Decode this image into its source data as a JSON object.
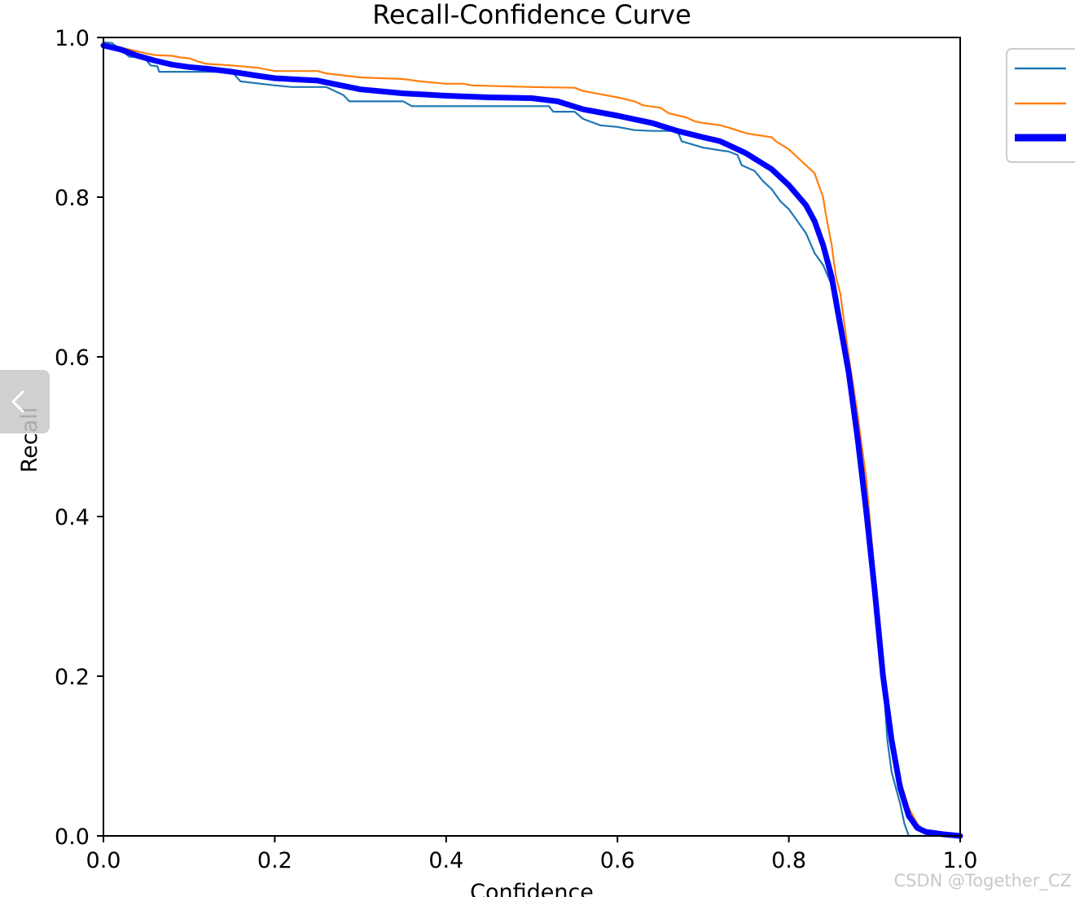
{
  "chart_data": {
    "type": "line",
    "title": "Recall-Confidence Curve",
    "xlabel": "Confidence",
    "ylabel": "Recall",
    "xlim": [
      0,
      1
    ],
    "ylim": [
      0,
      1
    ],
    "xticks": [
      "0.0",
      "0.2",
      "0.4",
      "0.6",
      "0.8",
      "1.0"
    ],
    "yticks": [
      "0.0",
      "0.2",
      "0.4",
      "0.6",
      "0.8",
      "1.0"
    ],
    "grid": false,
    "legend_position": "upper-right-outside",
    "series": [
      {
        "color": "#1f77b4",
        "width": "thin",
        "points": [
          [
            0.0,
            0.994
          ],
          [
            0.01,
            0.993
          ],
          [
            0.02,
            0.985
          ],
          [
            0.03,
            0.976
          ],
          [
            0.04,
            0.975
          ],
          [
            0.05,
            0.972
          ],
          [
            0.055,
            0.965
          ],
          [
            0.063,
            0.964
          ],
          [
            0.065,
            0.957
          ],
          [
            0.1,
            0.957
          ],
          [
            0.15,
            0.957
          ],
          [
            0.16,
            0.945
          ],
          [
            0.2,
            0.94
          ],
          [
            0.22,
            0.938
          ],
          [
            0.26,
            0.938
          ],
          [
            0.28,
            0.928
          ],
          [
            0.287,
            0.92
          ],
          [
            0.3,
            0.92
          ],
          [
            0.35,
            0.92
          ],
          [
            0.36,
            0.914
          ],
          [
            0.4,
            0.914
          ],
          [
            0.5,
            0.914
          ],
          [
            0.52,
            0.914
          ],
          [
            0.525,
            0.907
          ],
          [
            0.55,
            0.907
          ],
          [
            0.56,
            0.898
          ],
          [
            0.58,
            0.89
          ],
          [
            0.6,
            0.888
          ],
          [
            0.62,
            0.884
          ],
          [
            0.64,
            0.883
          ],
          [
            0.67,
            0.883
          ],
          [
            0.675,
            0.87
          ],
          [
            0.7,
            0.862
          ],
          [
            0.73,
            0.857
          ],
          [
            0.74,
            0.853
          ],
          [
            0.745,
            0.84
          ],
          [
            0.76,
            0.833
          ],
          [
            0.77,
            0.82
          ],
          [
            0.78,
            0.81
          ],
          [
            0.79,
            0.795
          ],
          [
            0.8,
            0.785
          ],
          [
            0.81,
            0.77
          ],
          [
            0.82,
            0.755
          ],
          [
            0.83,
            0.73
          ],
          [
            0.84,
            0.715
          ],
          [
            0.85,
            0.69
          ],
          [
            0.855,
            0.67
          ],
          [
            0.86,
            0.64
          ],
          [
            0.87,
            0.6
          ],
          [
            0.88,
            0.52
          ],
          [
            0.89,
            0.45
          ],
          [
            0.9,
            0.33
          ],
          [
            0.91,
            0.2
          ],
          [
            0.915,
            0.12
          ],
          [
            0.92,
            0.08
          ],
          [
            0.93,
            0.04
          ],
          [
            0.935,
            0.015
          ],
          [
            0.94,
            0.0
          ],
          [
            0.95,
            0.0
          ],
          [
            1.0,
            0.0
          ]
        ]
      },
      {
        "color": "#ff7f0e",
        "width": "thin",
        "points": [
          [
            0.0,
            0.993
          ],
          [
            0.01,
            0.99
          ],
          [
            0.03,
            0.985
          ],
          [
            0.05,
            0.98
          ],
          [
            0.06,
            0.978
          ],
          [
            0.08,
            0.977
          ],
          [
            0.09,
            0.975
          ],
          [
            0.1,
            0.974
          ],
          [
            0.11,
            0.97
          ],
          [
            0.12,
            0.967
          ],
          [
            0.15,
            0.965
          ],
          [
            0.18,
            0.962
          ],
          [
            0.2,
            0.958
          ],
          [
            0.25,
            0.958
          ],
          [
            0.26,
            0.955
          ],
          [
            0.3,
            0.95
          ],
          [
            0.35,
            0.948
          ],
          [
            0.37,
            0.945
          ],
          [
            0.4,
            0.942
          ],
          [
            0.42,
            0.942
          ],
          [
            0.43,
            0.94
          ],
          [
            0.5,
            0.938
          ],
          [
            0.55,
            0.937
          ],
          [
            0.56,
            0.933
          ],
          [
            0.6,
            0.925
          ],
          [
            0.62,
            0.92
          ],
          [
            0.63,
            0.915
          ],
          [
            0.65,
            0.912
          ],
          [
            0.66,
            0.905
          ],
          [
            0.68,
            0.9
          ],
          [
            0.69,
            0.895
          ],
          [
            0.7,
            0.893
          ],
          [
            0.72,
            0.89
          ],
          [
            0.73,
            0.887
          ],
          [
            0.75,
            0.88
          ],
          [
            0.78,
            0.875
          ],
          [
            0.785,
            0.87
          ],
          [
            0.8,
            0.86
          ],
          [
            0.81,
            0.85
          ],
          [
            0.82,
            0.84
          ],
          [
            0.83,
            0.83
          ],
          [
            0.835,
            0.815
          ],
          [
            0.84,
            0.8
          ],
          [
            0.843,
            0.78
          ],
          [
            0.85,
            0.74
          ],
          [
            0.855,
            0.7
          ],
          [
            0.86,
            0.68
          ],
          [
            0.87,
            0.6
          ],
          [
            0.88,
            0.53
          ],
          [
            0.89,
            0.45
          ],
          [
            0.9,
            0.33
          ],
          [
            0.91,
            0.2
          ],
          [
            0.92,
            0.12
          ],
          [
            0.93,
            0.07
          ],
          [
            0.94,
            0.035
          ],
          [
            0.95,
            0.015
          ],
          [
            0.96,
            0.005
          ],
          [
            0.97,
            0.002
          ],
          [
            1.0,
            0.0
          ]
        ]
      },
      {
        "color": "#0000ff",
        "width": "thick",
        "points": [
          [
            0.0,
            0.99
          ],
          [
            0.02,
            0.985
          ],
          [
            0.04,
            0.977
          ],
          [
            0.06,
            0.971
          ],
          [
            0.08,
            0.966
          ],
          [
            0.1,
            0.963
          ],
          [
            0.12,
            0.961
          ],
          [
            0.15,
            0.957
          ],
          [
            0.18,
            0.952
          ],
          [
            0.2,
            0.949
          ],
          [
            0.25,
            0.946
          ],
          [
            0.3,
            0.935
          ],
          [
            0.35,
            0.93
          ],
          [
            0.4,
            0.927
          ],
          [
            0.45,
            0.925
          ],
          [
            0.5,
            0.924
          ],
          [
            0.53,
            0.92
          ],
          [
            0.56,
            0.91
          ],
          [
            0.6,
            0.902
          ],
          [
            0.64,
            0.893
          ],
          [
            0.67,
            0.883
          ],
          [
            0.7,
            0.875
          ],
          [
            0.72,
            0.87
          ],
          [
            0.75,
            0.855
          ],
          [
            0.78,
            0.835
          ],
          [
            0.8,
            0.815
          ],
          [
            0.82,
            0.79
          ],
          [
            0.83,
            0.77
          ],
          [
            0.84,
            0.74
          ],
          [
            0.85,
            0.7
          ],
          [
            0.86,
            0.64
          ],
          [
            0.87,
            0.58
          ],
          [
            0.88,
            0.5
          ],
          [
            0.89,
            0.41
          ],
          [
            0.9,
            0.31
          ],
          [
            0.91,
            0.2
          ],
          [
            0.92,
            0.12
          ],
          [
            0.93,
            0.06
          ],
          [
            0.94,
            0.025
          ],
          [
            0.95,
            0.01
          ],
          [
            0.96,
            0.005
          ],
          [
            0.98,
            0.002
          ],
          [
            1.0,
            0.0
          ]
        ]
      }
    ]
  },
  "watermark": "CSDN @Together_CZ",
  "colors": {
    "axis": "#000000",
    "legend_border": "#cccccc",
    "background": "#ffffff"
  },
  "icons": {
    "nav_back": "chevron-left-icon"
  }
}
